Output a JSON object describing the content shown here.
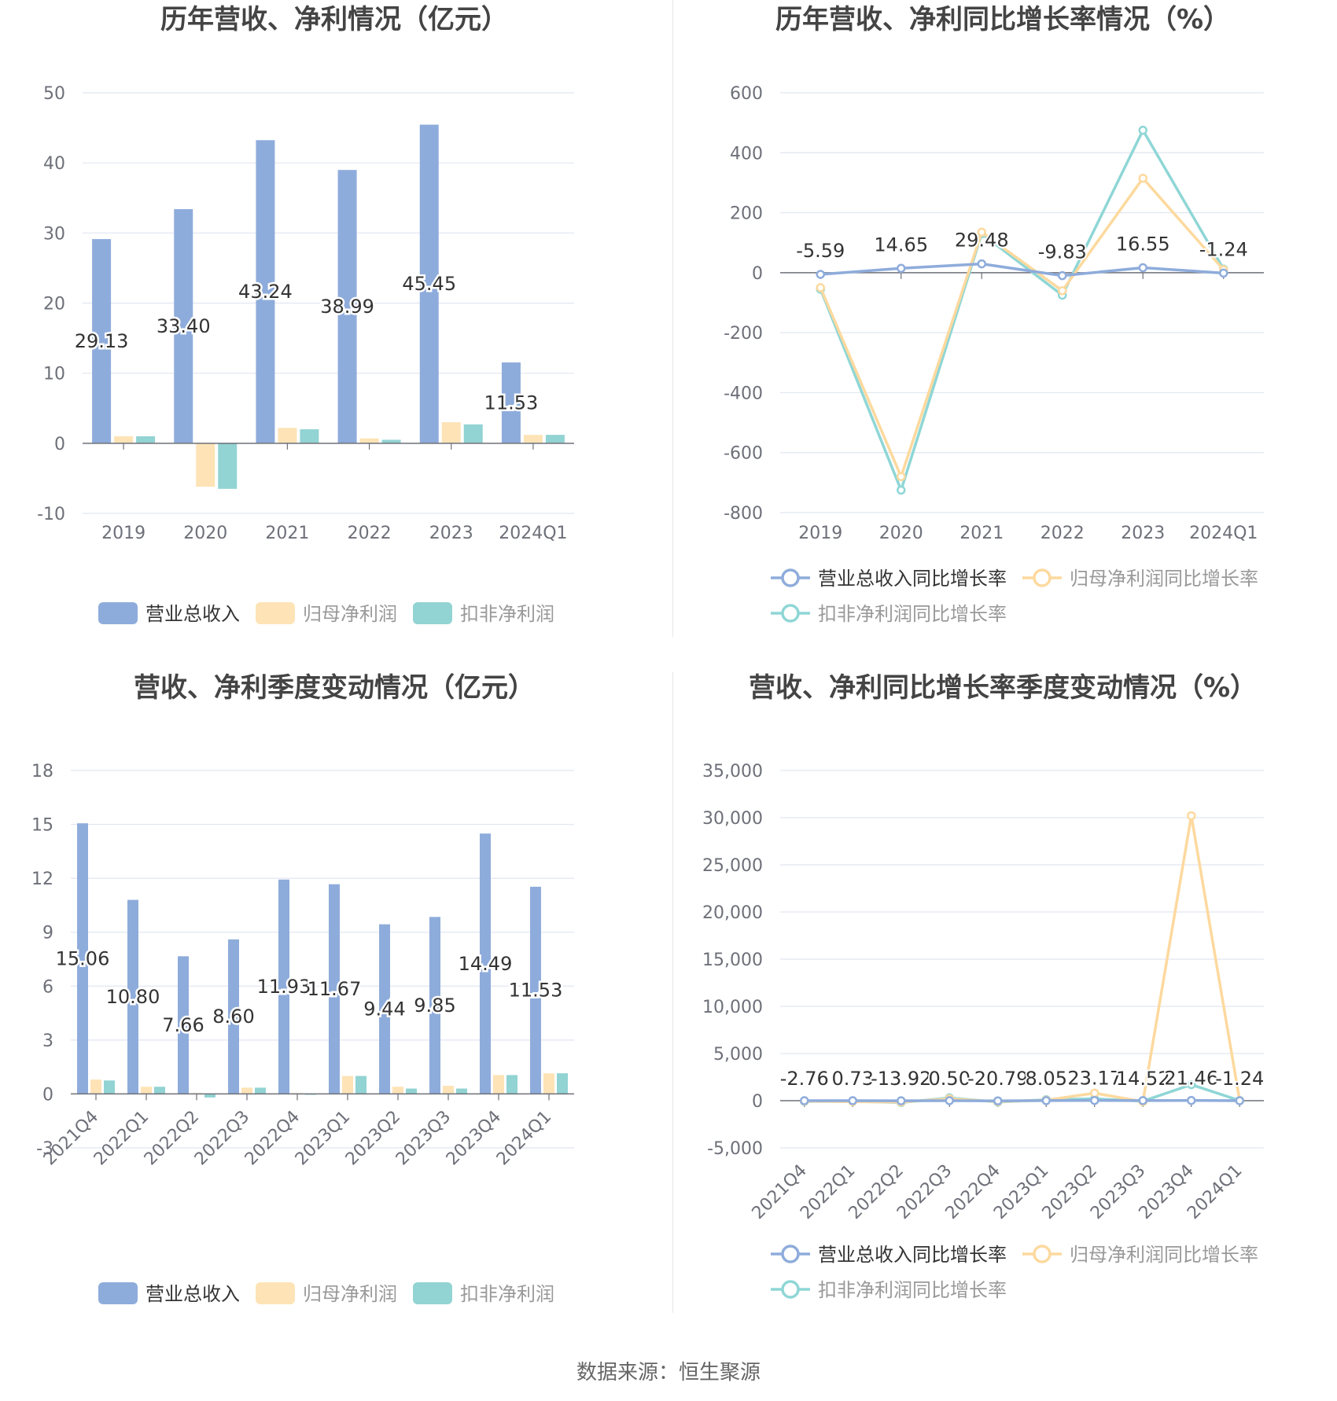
{
  "footer": {
    "source": "数据来源：恒生聚源"
  },
  "legend": {
    "bar": [
      "营业总收入",
      "归母净利润",
      "扣非净利润"
    ],
    "line": [
      "营业总收入同比增长率",
      "归母净利润同比增长率",
      "扣非净利润同比增长率"
    ]
  },
  "colors": {
    "revenue": "#8eacdb",
    "net": "#fde3b6",
    "deducted": "#92d3d3",
    "revenue_line": "#8eacdb",
    "net_line": "#fdd99e",
    "deducted_line": "#8fd6d6"
  },
  "chart_data": [
    {
      "id": "annual_bar",
      "type": "bar",
      "title": "历年营收、净利情况（亿元）",
      "categories": [
        "2019",
        "2020",
        "2021",
        "2022",
        "2023",
        "2024Q1"
      ],
      "series": [
        {
          "name": "营业总收入",
          "values": [
            29.13,
            33.4,
            43.24,
            38.99,
            45.45,
            11.53
          ],
          "labels": [
            "29.13",
            "33.40",
            "43.24",
            "38.99",
            "45.45",
            "11.53"
          ]
        },
        {
          "name": "归母净利润",
          "values": [
            1.0,
            -6.2,
            2.2,
            0.7,
            3.0,
            1.2
          ]
        },
        {
          "name": "扣非净利润",
          "values": [
            1.0,
            -6.5,
            2.0,
            0.5,
            2.7,
            1.2
          ]
        }
      ],
      "yticks": [
        50,
        40,
        30,
        20,
        10,
        0,
        -10
      ],
      "ylim": [
        -10,
        50
      ]
    },
    {
      "id": "annual_line",
      "type": "line",
      "title": "历年营收、净利同比增长率情况（%）",
      "categories": [
        "2019",
        "2020",
        "2021",
        "2022",
        "2023",
        "2024Q1"
      ],
      "series": [
        {
          "name": "营业总收入同比增长率",
          "values": [
            -5.59,
            14.65,
            29.48,
            -9.83,
            16.55,
            -1.24
          ],
          "labels": [
            "-5.59",
            "14.65",
            "29.48",
            "-9.83",
            "16.55",
            "-1.24"
          ]
        },
        {
          "name": "归母净利润同比增长率",
          "values": [
            -50,
            -680,
            135,
            -60,
            315,
            10
          ]
        },
        {
          "name": "扣非净利润同比增长率",
          "values": [
            -55,
            -725,
            130,
            -75,
            475,
            12
          ]
        }
      ],
      "yticks": [
        600,
        400,
        200,
        0,
        -200,
        -400,
        -600,
        -800
      ],
      "ylim": [
        -800,
        600
      ]
    },
    {
      "id": "quarter_bar",
      "type": "bar",
      "title": "营收、净利季度变动情况（亿元）",
      "categories": [
        "2021Q4",
        "2022Q1",
        "2022Q2",
        "2022Q3",
        "2022Q4",
        "2023Q1",
        "2023Q2",
        "2023Q3",
        "2023Q4",
        "2024Q1"
      ],
      "series": [
        {
          "name": "营业总收入",
          "values": [
            15.06,
            10.8,
            7.66,
            8.6,
            11.93,
            11.67,
            9.44,
            9.85,
            14.49,
            11.53
          ],
          "labels": [
            "15.06",
            "10.80",
            "7.66",
            "8.60",
            "11.93",
            "11.67",
            "9.44",
            "9.85",
            "14.49",
            "11.53"
          ]
        },
        {
          "name": "归母净利润",
          "values": [
            0.8,
            0.4,
            0.05,
            0.35,
            0.05,
            1.0,
            0.4,
            0.45,
            1.05,
            1.15
          ]
        },
        {
          "name": "扣非净利润",
          "values": [
            0.75,
            0.4,
            -0.2,
            0.35,
            -0.05,
            1.0,
            0.3,
            0.3,
            1.05,
            1.15
          ]
        }
      ],
      "yticks": [
        18,
        15,
        12,
        9,
        6,
        3,
        0,
        -3
      ],
      "ylim": [
        -3,
        18
      ]
    },
    {
      "id": "quarter_line",
      "type": "line",
      "title": "营收、净利同比增长率季度变动情况（%）",
      "categories": [
        "2021Q4",
        "2022Q1",
        "2022Q2",
        "2022Q3",
        "2022Q4",
        "2023Q1",
        "2023Q2",
        "2023Q3",
        "2023Q4",
        "2024Q1"
      ],
      "series": [
        {
          "name": "营业总收入同比增长率",
          "values": [
            -2.76,
            0.73,
            -13.92,
            0.5,
            -20.79,
            8.05,
            23.17,
            14.52,
            21.46,
            -1.24
          ],
          "labels": [
            "-2.76",
            "0.73",
            "-13.92",
            "0.50",
            "-20.79",
            "8.05",
            "23.17",
            "14.52",
            "21.46",
            "-1.24"
          ]
        },
        {
          "name": "归母净利润同比增长率",
          "values": [
            -50,
            -100,
            -150,
            200,
            -100,
            50,
            800,
            -100,
            30200,
            10
          ]
        },
        {
          "name": "扣非净利润同比增长率",
          "values": [
            -80,
            -60,
            -200,
            300,
            -150,
            100,
            200,
            -50,
            1700,
            12
          ]
        }
      ],
      "yticks": [
        35000,
        30000,
        25000,
        20000,
        15000,
        10000,
        5000,
        0,
        -5000
      ],
      "ytick_labels": [
        "35,000",
        "30,000",
        "25,000",
        "20,000",
        "15,000",
        "10,000",
        "5,000",
        "0",
        "-5,000"
      ],
      "ylim": [
        -5000,
        35000
      ]
    }
  ]
}
